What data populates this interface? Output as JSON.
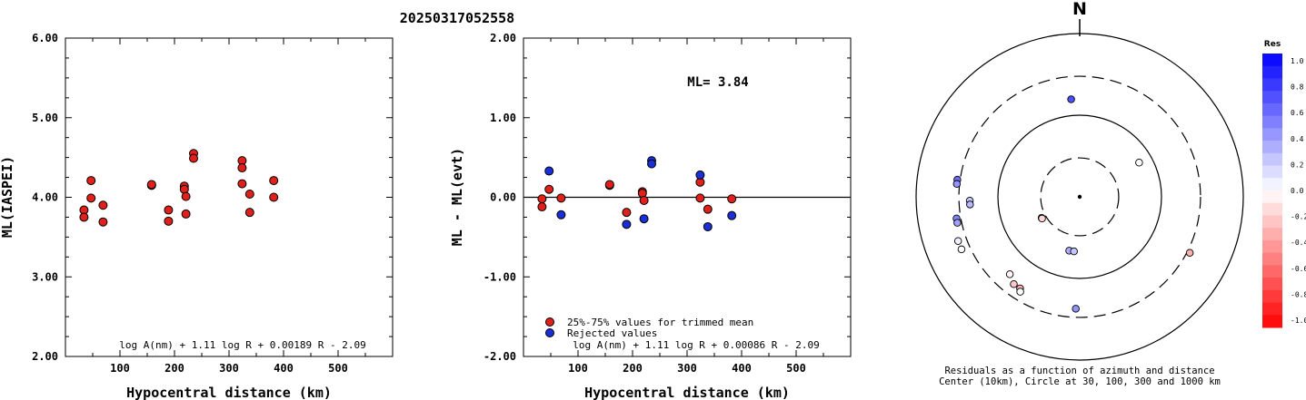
{
  "title": "20250317052558",
  "chart_data": [
    {
      "type": "scatter",
      "name": "ml-vs-distance",
      "xlabel": "Hypocentral distance (km)",
      "ylabel": "ML(IASPEI)",
      "xlim": [
        0,
        600
      ],
      "ylim": [
        2.0,
        6.0
      ],
      "x_ticks": [
        "100",
        "200",
        "300",
        "400",
        "500"
      ],
      "y_ticks": [
        "2.00",
        "3.00",
        "4.00",
        "5.00",
        "6.00"
      ],
      "formula": "log A(nm) + 1.11 log R + 0.00189 R - 2.09",
      "series": [
        {
          "color": "#e0201b",
          "points": [
            [
              34,
              3.84
            ],
            [
              34,
              3.75
            ],
            [
              47,
              4.21
            ],
            [
              47,
              3.99
            ],
            [
              69,
              3.9
            ],
            [
              69,
              3.69
            ],
            [
              158,
              4.15
            ],
            [
              158,
              4.16
            ],
            [
              189,
              3.84
            ],
            [
              189,
              3.7
            ],
            [
              218,
              4.14
            ],
            [
              218,
              4.1
            ],
            [
              221,
              4.01
            ],
            [
              221,
              3.79
            ],
            [
              235,
              4.55
            ],
            [
              235,
              4.49
            ],
            [
              324,
              4.46
            ],
            [
              324,
              4.37
            ],
            [
              324,
              4.17
            ],
            [
              338,
              4.04
            ],
            [
              338,
              3.81
            ],
            [
              382,
              4.21
            ],
            [
              382,
              4.0
            ]
          ]
        }
      ]
    },
    {
      "type": "scatter",
      "name": "residual-vs-distance",
      "xlabel": "Hypocentral distance (km)",
      "ylabel": "ML - ML(evt)",
      "xlim": [
        0,
        600
      ],
      "ylim": [
        -2.0,
        2.0
      ],
      "x_ticks": [
        "100",
        "200",
        "300",
        "400",
        "500"
      ],
      "y_ticks": [
        "-2.00",
        "-1.00",
        "0.00",
        "1.00",
        "2.00"
      ],
      "annotation": "ML= 3.84",
      "formula": "log A(nm) + 1.11 log R + 0.00086 R - 2.09",
      "series": [
        {
          "name": "25%-75% values for trimmed mean",
          "color": "#e0201b",
          "points": [
            [
              34,
              -0.02
            ],
            [
              34,
              -0.12
            ],
            [
              47,
              0.1
            ],
            [
              69,
              -0.01
            ],
            [
              158,
              0.15
            ],
            [
              158,
              0.16
            ],
            [
              189,
              -0.19
            ],
            [
              218,
              0.07
            ],
            [
              218,
              0.05
            ],
            [
              221,
              -0.04
            ],
            [
              324,
              0.19
            ],
            [
              324,
              -0.01
            ],
            [
              338,
              -0.15
            ],
            [
              382,
              -0.02
            ]
          ]
        },
        {
          "name": "Rejected values",
          "color": "#1a2fd6",
          "points": [
            [
              47,
              0.33
            ],
            [
              69,
              -0.22
            ],
            [
              189,
              -0.34
            ],
            [
              221,
              -0.27
            ],
            [
              235,
              0.46
            ],
            [
              235,
              0.42
            ],
            [
              324,
              0.28
            ],
            [
              338,
              -0.37
            ],
            [
              382,
              -0.23
            ]
          ]
        }
      ]
    },
    {
      "type": "scatter",
      "name": "residual-polar-map",
      "north_label": "N",
      "caption_line1": "Residuals as a function of azimuth and distance",
      "caption_line2": "Center (10km), Circle at 30, 100, 300 and 1000 km",
      "rings_km": [
        30,
        100,
        300,
        1000
      ],
      "stations": [
        {
          "az": 355,
          "dist": 158,
          "res": 0.69
        },
        {
          "az": 60,
          "dist": 69,
          "res": 0.0
        },
        {
          "az": 268,
          "dist": 221,
          "res": 0.21
        },
        {
          "az": 266,
          "dist": 221,
          "res": 0.28
        },
        {
          "az": 278,
          "dist": 324,
          "res": 0.57
        },
        {
          "az": 276,
          "dist": 324,
          "res": 0.42
        },
        {
          "az": 260,
          "dist": 338,
          "res": 0.48
        },
        {
          "az": 258,
          "dist": 338,
          "res": 0.37
        },
        {
          "az": 250,
          "dist": 382,
          "res": 0.05
        },
        {
          "az": 246,
          "dist": 382,
          "res": 0.0
        },
        {
          "az": 241,
          "dist": 34,
          "res": 0.04
        },
        {
          "az": 240,
          "dist": 34,
          "res": -0.16
        },
        {
          "az": 222,
          "dist": 189,
          "res": -0.04
        },
        {
          "az": 217,
          "dist": 218,
          "res": -0.21
        },
        {
          "az": 213,
          "dist": 218,
          "res": -0.3
        },
        {
          "az": 212,
          "dist": 235,
          "res": 0.0
        },
        {
          "az": 191,
          "dist": 47,
          "res": 0.32
        },
        {
          "az": 186,
          "dist": 47,
          "res": 0.23
        },
        {
          "az": 182,
          "dist": 235,
          "res": 0.42
        },
        {
          "az": 117,
          "dist": 324,
          "res": -0.31
        }
      ]
    },
    {
      "type": "heatmap",
      "name": "residual-color-scale",
      "title": "Res",
      "labels": [
        "1.0",
        "0.8",
        "0.6",
        "0.4",
        "0.2",
        "0.0",
        "-0.2",
        "-0.4",
        "-0.6",
        "-0.8",
        "-1.0"
      ],
      "range": [
        -1.0,
        1.0
      ],
      "colors": {
        "positive": "#0000ff",
        "zero": "#ffffff",
        "negative": "#ff0000"
      }
    }
  ]
}
